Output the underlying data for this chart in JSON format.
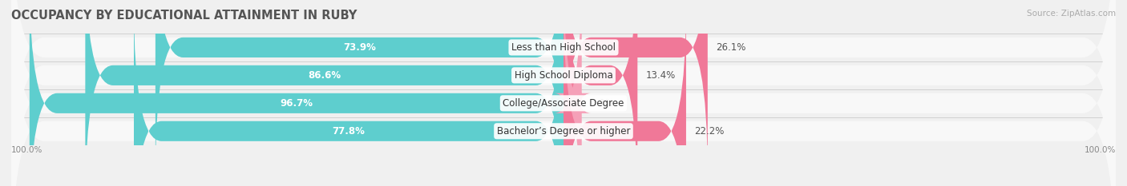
{
  "title": "OCCUPANCY BY EDUCATIONAL ATTAINMENT IN RUBY",
  "source": "Source: ZipAtlas.com",
  "categories": [
    "Less than High School",
    "High School Diploma",
    "College/Associate Degree",
    "Bachelor’s Degree or higher"
  ],
  "owner_pct": [
    73.9,
    86.6,
    96.7,
    77.8
  ],
  "renter_pct": [
    26.1,
    13.4,
    3.3,
    22.2
  ],
  "owner_color": "#5ECECE",
  "renter_color": "#F07898",
  "renter_color_light": "#F5A0B8",
  "bg_color": "#f0f0f0",
  "bar_bg_color": "#e2e2e2",
  "row_bg_color": "#f8f8f8",
  "title_fontsize": 10.5,
  "label_fontsize": 8.5,
  "cat_fontsize": 8.5,
  "bar_height": 0.72,
  "axis_label_left": "100.0%",
  "axis_label_right": "100.0%",
  "xlim_left": -100,
  "xlim_right": 100,
  "scale": 100
}
